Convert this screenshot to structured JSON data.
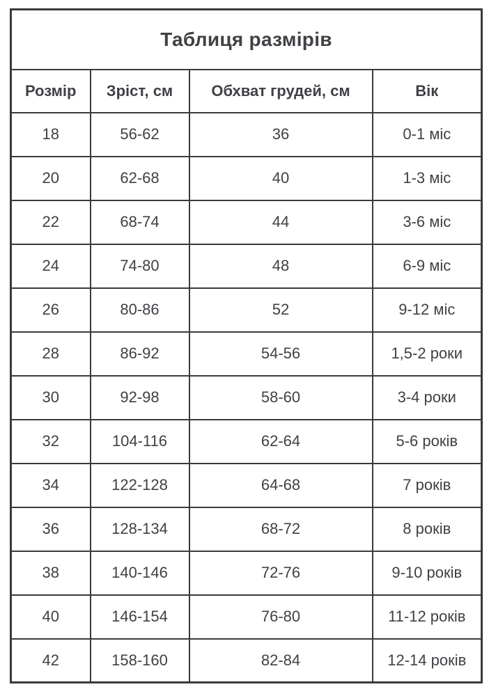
{
  "page": {
    "title": "Таблиця размірів"
  },
  "colors": {
    "background": "#ffffff",
    "border": "#3a3a3a",
    "text": "#3f4145"
  },
  "chart_data": {
    "type": "table",
    "title": "Таблиця размірів",
    "columns": [
      "Розмір",
      "Зріст, см",
      "Обхват грудей, см",
      "Вік"
    ],
    "rows": [
      [
        "18",
        "56-62",
        "36",
        "0-1 міс"
      ],
      [
        "20",
        "62-68",
        "40",
        "1-3 міс"
      ],
      [
        "22",
        "68-74",
        "44",
        "3-6 міс"
      ],
      [
        "24",
        "74-80",
        "48",
        "6-9 міс"
      ],
      [
        "26",
        "80-86",
        "52",
        "9-12 міс"
      ],
      [
        "28",
        "86-92",
        "54-56",
        "1,5-2 роки"
      ],
      [
        "30",
        "92-98",
        "58-60",
        "3-4 роки"
      ],
      [
        "32",
        "104-116",
        "62-64",
        "5-6 років"
      ],
      [
        "34",
        "122-128",
        "64-68",
        "7 років"
      ],
      [
        "36",
        "128-134",
        "68-72",
        "8 років"
      ],
      [
        "38",
        "140-146",
        "72-76",
        "9-10 років"
      ],
      [
        "40",
        "146-154",
        "76-80",
        "11-12 років"
      ],
      [
        "42",
        "158-160",
        "82-84",
        "12-14 років"
      ]
    ]
  }
}
